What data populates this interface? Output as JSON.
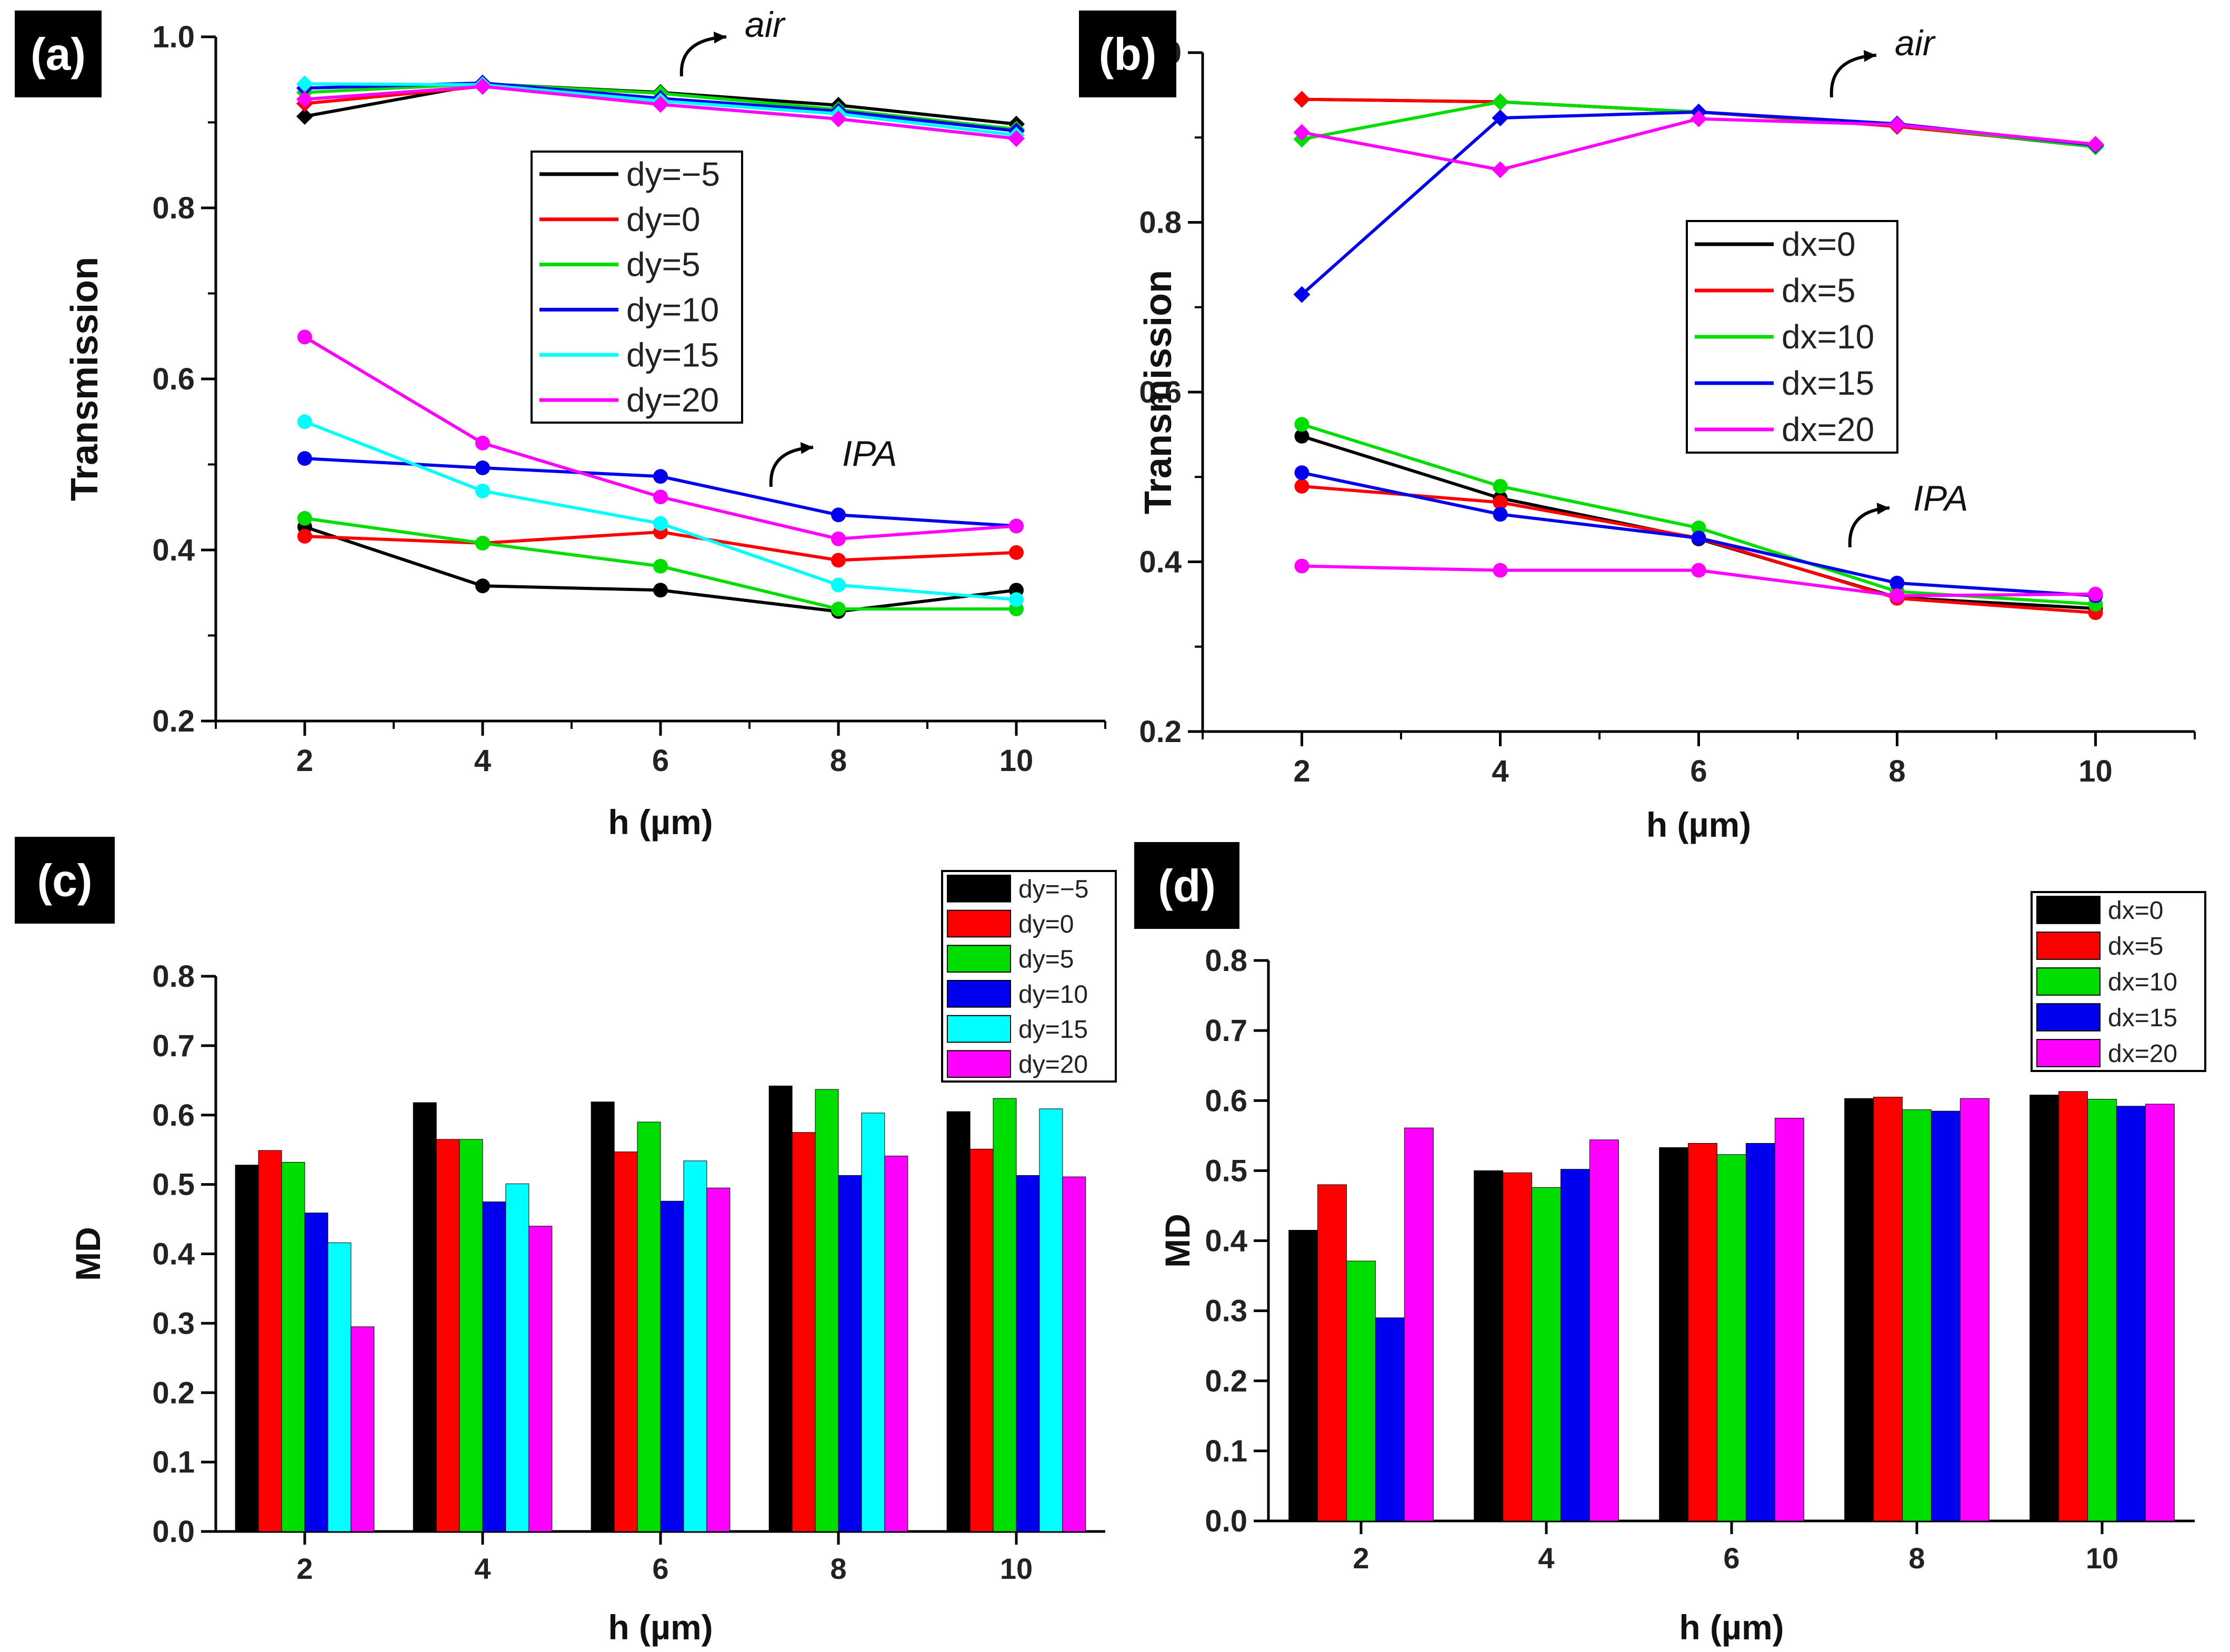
{
  "panels": {
    "a": {
      "label": "(a)"
    },
    "b": {
      "label": "(b)"
    },
    "c": {
      "label": "(c)"
    },
    "d": {
      "label": "(d)"
    }
  },
  "chart_data": [
    {
      "id": "a",
      "type": "line",
      "title": "",
      "xlabel": "h (µm)",
      "ylabel": "Transmission",
      "x": [
        2,
        4,
        6,
        8,
        10
      ],
      "xticks": [
        "2",
        "4",
        "6",
        "8",
        "10"
      ],
      "xlim": [
        1,
        11
      ],
      "ylim": [
        0.2,
        1.0
      ],
      "yticks": [
        "0.2",
        "0.4",
        "0.6",
        "0.8",
        "1.0"
      ],
      "annotations": {
        "air": "air",
        "ipa": "IPA"
      },
      "series": [
        {
          "name": "dy=−5",
          "color": "#000000",
          "air": [
            0.907,
            0.945,
            0.935,
            0.92,
            0.898
          ],
          "ipa": [
            0.427,
            0.358,
            0.353,
            0.328,
            0.353
          ]
        },
        {
          "name": "dy=0",
          "color": "#ff0000",
          "air": [
            0.922,
            0.942,
            0.928,
            0.912,
            0.892
          ],
          "ipa": [
            0.416,
            0.408,
            0.421,
            0.388,
            0.397
          ]
        },
        {
          "name": "dy=5",
          "color": "#00dd00",
          "air": [
            0.935,
            0.945,
            0.934,
            0.915,
            0.892
          ],
          "ipa": [
            0.437,
            0.408,
            0.381,
            0.331,
            0.331
          ]
        },
        {
          "name": "dy=10",
          "color": "#0000ee",
          "air": [
            0.94,
            0.946,
            0.928,
            0.913,
            0.89
          ],
          "ipa": [
            0.507,
            0.496,
            0.486,
            0.441,
            0.428
          ]
        },
        {
          "name": "dy=15",
          "color": "#00ffff",
          "air": [
            0.945,
            0.944,
            0.925,
            0.91,
            0.885
          ],
          "ipa": [
            0.55,
            0.469,
            0.431,
            0.359,
            0.342
          ]
        },
        {
          "name": "dy=20",
          "color": "#ff00ff",
          "air": [
            0.927,
            0.942,
            0.921,
            0.904,
            0.881
          ],
          "ipa": [
            0.649,
            0.525,
            0.462,
            0.413,
            0.428
          ]
        }
      ]
    },
    {
      "id": "b",
      "type": "line",
      "title": "",
      "xlabel": "h (µm)",
      "ylabel": "Transmission",
      "x": [
        2,
        4,
        6,
        8,
        10
      ],
      "xticks": [
        "2",
        "4",
        "6",
        "8",
        "10"
      ],
      "xlim": [
        1,
        11
      ],
      "ylim": [
        0.2,
        1.0
      ],
      "yticks": [
        "0.2",
        "0.4",
        "0.6",
        "0.8",
        "1.0"
      ],
      "annotations": {
        "air": "air",
        "ipa": "IPA"
      },
      "series": [
        {
          "name": "dx=0",
          "color": "#000000",
          "air": [
            0.945,
            0.942,
            0.93,
            0.914,
            0.889
          ],
          "ipa": [
            0.548,
            0.475,
            0.427,
            0.358,
            0.345
          ]
        },
        {
          "name": "dx=5",
          "color": "#ff0000",
          "air": [
            0.945,
            0.942,
            0.93,
            0.913,
            0.89
          ],
          "ipa": [
            0.489,
            0.47,
            0.428,
            0.357,
            0.34
          ]
        },
        {
          "name": "dx=10",
          "color": "#00dd00",
          "air": [
            0.898,
            0.942,
            0.93,
            0.915,
            0.889
          ],
          "ipa": [
            0.562,
            0.489,
            0.44,
            0.365,
            0.35
          ]
        },
        {
          "name": "dx=15",
          "color": "#0000ee",
          "air": [
            0.715,
            0.923,
            0.93,
            0.916,
            0.891
          ],
          "ipa": [
            0.505,
            0.456,
            0.428,
            0.375,
            0.36
          ]
        },
        {
          "name": "dx=20",
          "color": "#ff00ff",
          "air": [
            0.906,
            0.862,
            0.922,
            0.915,
            0.892
          ],
          "ipa": [
            0.395,
            0.39,
            0.39,
            0.36,
            0.362
          ]
        }
      ]
    },
    {
      "id": "c",
      "type": "bar",
      "title": "",
      "xlabel": "h (µm)",
      "ylabel": "MD",
      "categories": [
        "2",
        "4",
        "6",
        "8",
        "10"
      ],
      "ylim": [
        0.0,
        0.8
      ],
      "yticks": [
        "0.0",
        "0.1",
        "0.2",
        "0.3",
        "0.4",
        "0.5",
        "0.6",
        "0.7",
        "0.8"
      ],
      "series": [
        {
          "name": "dy=−5",
          "color": "#000000",
          "values": [
            0.528,
            0.618,
            0.619,
            0.642,
            0.605
          ]
        },
        {
          "name": "dy=0",
          "color": "#ff0000",
          "values": [
            0.549,
            0.565,
            0.547,
            0.575,
            0.551
          ]
        },
        {
          "name": "dy=5",
          "color": "#00dd00",
          "values": [
            0.532,
            0.565,
            0.59,
            0.637,
            0.624
          ]
        },
        {
          "name": "dy=10",
          "color": "#0000ee",
          "values": [
            0.459,
            0.475,
            0.476,
            0.513,
            0.513
          ]
        },
        {
          "name": "dy=15",
          "color": "#00ffff",
          "values": [
            0.416,
            0.501,
            0.534,
            0.603,
            0.609
          ]
        },
        {
          "name": "dy=20",
          "color": "#ff00ff",
          "values": [
            0.295,
            0.44,
            0.495,
            0.541,
            0.511
          ]
        }
      ]
    },
    {
      "id": "d",
      "type": "bar",
      "title": "",
      "xlabel": "h (µm)",
      "ylabel": "MD",
      "categories": [
        "2",
        "4",
        "6",
        "8",
        "10"
      ],
      "ylim": [
        0.0,
        0.8
      ],
      "yticks": [
        "0.0",
        "0.1",
        "0.2",
        "0.3",
        "0.4",
        "0.5",
        "0.6",
        "0.7",
        "0.8"
      ],
      "series": [
        {
          "name": "dx=0",
          "color": "#000000",
          "values": [
            0.415,
            0.5,
            0.533,
            0.603,
            0.608
          ]
        },
        {
          "name": "dx=5",
          "color": "#ff0000",
          "values": [
            0.48,
            0.497,
            0.539,
            0.605,
            0.613
          ]
        },
        {
          "name": "dx=10",
          "color": "#00dd00",
          "values": [
            0.371,
            0.476,
            0.523,
            0.587,
            0.602
          ]
        },
        {
          "name": "dx=15",
          "color": "#0000ee",
          "values": [
            0.29,
            0.502,
            0.539,
            0.585,
            0.592
          ]
        },
        {
          "name": "dx=20",
          "color": "#ff00ff",
          "values": [
            0.561,
            0.544,
            0.575,
            0.603,
            0.595
          ]
        }
      ]
    }
  ]
}
